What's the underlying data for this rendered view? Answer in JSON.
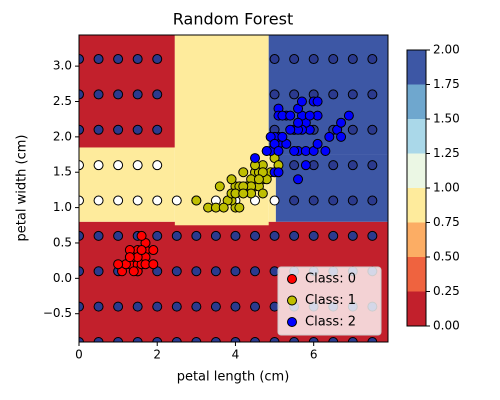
{
  "chart_data": {
    "type": "scatter",
    "title": "Random Forest",
    "x_label": "petal length (cm)",
    "y_label": "petal width (cm)",
    "xlim": [
      0,
      7.9
    ],
    "ylim": [
      -0.9,
      3.44
    ],
    "xticks": [
      0,
      2,
      4,
      6
    ],
    "yticks": [
      {
        "value": -0.5,
        "label": "−0.5"
      },
      {
        "value": 0,
        "label": "0.0"
      },
      {
        "value": 0.5,
        "label": "0.5"
      },
      {
        "value": 1,
        "label": "1.0"
      },
      {
        "value": 1.5,
        "label": "1.5"
      },
      {
        "value": 2,
        "label": "2.0"
      },
      {
        "value": 2.5,
        "label": "2.5"
      },
      {
        "value": 3,
        "label": "3.0"
      }
    ],
    "regions": [
      {
        "x0": 0,
        "x1": 7.9,
        "y0": -0.9,
        "y1": 0.8,
        "value": 0
      },
      {
        "x0": 0,
        "x1": 2.45,
        "y0": 0.8,
        "y1": 1.85,
        "value": 1
      },
      {
        "x0": 0,
        "x1": 2.45,
        "y0": 1.85,
        "y1": 3.44,
        "value": 0
      },
      {
        "x0": 2.45,
        "x1": 4.85,
        "y0": 0.75,
        "y1": 3.44,
        "value": 1
      },
      {
        "x0": 4.85,
        "x1": 7.9,
        "y0": 1.75,
        "y1": 3.44,
        "value": 2
      },
      {
        "x0": 5.03,
        "x1": 7.9,
        "y0": 0.8,
        "y1": 1.75,
        "value": 2
      },
      {
        "x0": 4.85,
        "x1": 5.03,
        "y0": 0.8,
        "y1": 1.75,
        "value": 1
      }
    ],
    "grid_points": [
      {
        "color": "#2b3a8e",
        "x": [
          0,
          0.5,
          1,
          1.5,
          2,
          5,
          5.5,
          6,
          6.5,
          7,
          7.5,
          0,
          0.5,
          1,
          1.5,
          2,
          5,
          5.5,
          6,
          6.5,
          7,
          7.5,
          0,
          0.5,
          1,
          1.5,
          2,
          5,
          5.5,
          6,
          6.5,
          7,
          7.5,
          5.5,
          6,
          6.5,
          7,
          7.5,
          5.5,
          6,
          6.5,
          7,
          7.5,
          0,
          0.5,
          1,
          1.5,
          2,
          2.5,
          3,
          3.5,
          4,
          4.5,
          5,
          5.5,
          6,
          6.5,
          7,
          7.5,
          0,
          0.5,
          1,
          1.5,
          2,
          2.5,
          3,
          3.5,
          4,
          4.5,
          5,
          5.5,
          6,
          6.5,
          7,
          7.5,
          0,
          0.5,
          1,
          1.5,
          2,
          2.5,
          3,
          3.5,
          4,
          4.5,
          5,
          5.5,
          6,
          6.5,
          7,
          7.5,
          0,
          0.5,
          1,
          1.5,
          2,
          2.5,
          3,
          3.5,
          4,
          4.5,
          5,
          5.5,
          6,
          6.5,
          7,
          7.5
        ],
        "y": [
          3.1,
          3.1,
          3.1,
          3.1,
          3.1,
          3.1,
          3.1,
          3.1,
          3.1,
          3.1,
          3.1,
          2.6,
          2.6,
          2.6,
          2.6,
          2.6,
          2.6,
          2.6,
          2.6,
          2.6,
          2.6,
          2.6,
          2.1,
          2.1,
          2.1,
          2.1,
          2.1,
          2.1,
          2.1,
          2.1,
          2.1,
          2.1,
          2.1,
          1.6,
          1.6,
          1.6,
          1.6,
          1.6,
          1.1,
          1.1,
          1.1,
          1.1,
          1.1,
          0.6,
          0.6,
          0.6,
          0.6,
          0.6,
          0.6,
          0.6,
          0.6,
          0.6,
          0.6,
          0.6,
          0.6,
          0.6,
          0.6,
          0.6,
          0.6,
          0.1,
          0.1,
          0.1,
          0.1,
          0.1,
          0.1,
          0.1,
          0.1,
          0.1,
          0.1,
          0.1,
          0.1,
          0.1,
          0.1,
          0.1,
          0.1,
          -0.4,
          -0.4,
          -0.4,
          -0.4,
          -0.4,
          -0.4,
          -0.4,
          -0.4,
          -0.4,
          -0.4,
          -0.4,
          -0.4,
          -0.4,
          -0.4,
          -0.4,
          -0.4,
          -0.9,
          -0.9,
          -0.9,
          -0.9,
          -0.9,
          -0.9,
          -0.9,
          -0.9,
          -0.9,
          -0.9,
          -0.9,
          -0.9,
          -0.9,
          -0.9,
          -0.9,
          -0.9
        ]
      },
      {
        "color": "#ffffff",
        "x": [
          0,
          0.5,
          1,
          1.5,
          2,
          0,
          0.5,
          1,
          1.5,
          2,
          2.5,
          3,
          3.5,
          4,
          4.5,
          5
        ],
        "y": [
          1.6,
          1.6,
          1.6,
          1.6,
          1.6,
          1.1,
          1.1,
          1.1,
          1.1,
          1.1,
          1.1,
          1.1,
          1.1,
          1.1,
          1.1,
          1.1
        ]
      }
    ],
    "series": [
      {
        "name": "Class: 0",
        "color": "#ff0000",
        "x": [
          1.4,
          1.3,
          1.5,
          1.7,
          1.4,
          1.5,
          1.6,
          1.4,
          1.1,
          1.2,
          1.5,
          1.3,
          1.7,
          1.5,
          1.7,
          1.0,
          1.7,
          1.9,
          1.6,
          1.3,
          1.6,
          1.9
        ],
        "y": [
          0.2,
          0.2,
          0.2,
          0.4,
          0.3,
          0.1,
          0.2,
          0.1,
          0.1,
          0.2,
          0.4,
          0.4,
          0.3,
          0.3,
          0.2,
          0.2,
          0.5,
          0.2,
          0.4,
          0.3,
          0.6,
          0.4
        ]
      },
      {
        "name": "Class: 1",
        "color": "#bfbf00",
        "x": [
          4.7,
          4.5,
          4.9,
          4.0,
          4.6,
          4.5,
          4.7,
          3.3,
          4.6,
          3.9,
          3.5,
          4.2,
          4.0,
          3.6,
          4.4,
          4.1,
          3.9,
          4.8,
          4.7,
          4.3,
          4.8,
          5.0,
          3.8,
          3.7,
          3.9,
          5.1,
          4.5,
          4.7,
          4.4,
          4.1,
          4.4,
          4.6,
          4.0,
          4.2,
          4.2,
          3.0
        ],
        "y": [
          1.4,
          1.5,
          1.5,
          1.3,
          1.5,
          1.3,
          1.6,
          1.0,
          1.3,
          1.4,
          1.0,
          1.5,
          1.0,
          1.3,
          1.4,
          1.0,
          1.1,
          1.8,
          1.2,
          1.3,
          1.4,
          1.7,
          1.1,
          1.0,
          1.2,
          1.6,
          1.6,
          1.5,
          1.3,
          1.3,
          1.2,
          1.4,
          1.2,
          1.3,
          1.2,
          1.1
        ]
      },
      {
        "name": "Class: 2",
        "color": "#0000ff",
        "x": [
          6.0,
          5.1,
          5.9,
          5.6,
          5.8,
          6.6,
          4.5,
          6.3,
          5.8,
          6.1,
          5.1,
          5.3,
          5.5,
          5.0,
          5.1,
          5.3,
          5.5,
          6.7,
          6.9,
          5.0,
          5.7,
          4.9,
          6.7,
          4.9,
          5.7,
          6.0,
          4.8,
          5.6,
          5.8,
          6.1,
          6.4,
          5.6,
          5.1,
          5.6,
          6.1,
          5.6,
          5.4,
          5.1,
          5.9,
          5.7,
          5.2,
          5.0,
          5.2,
          5.4,
          5.1
        ],
        "y": [
          2.5,
          1.9,
          2.1,
          1.8,
          2.2,
          2.1,
          1.7,
          1.8,
          1.8,
          2.5,
          2.0,
          1.9,
          2.1,
          2.0,
          2.4,
          2.3,
          1.8,
          2.2,
          2.3,
          1.5,
          2.3,
          2.0,
          2.0,
          1.8,
          2.1,
          1.8,
          1.8,
          2.1,
          1.6,
          1.9,
          2.0,
          2.2,
          1.5,
          1.4,
          2.3,
          2.4,
          2.1,
          2.3,
          2.3,
          2.5,
          2.3,
          1.9,
          2.0,
          2.3,
          1.8
        ]
      }
    ],
    "legend": "lower right",
    "colorbar": {
      "clim": [
        0,
        2
      ],
      "ticks": [
        {
          "value": 0,
          "label": "0.00"
        },
        {
          "value": 0.25,
          "label": "0.25"
        },
        {
          "value": 0.5,
          "label": "0.50"
        },
        {
          "value": 0.75,
          "label": "0.75"
        },
        {
          "value": 1,
          "label": "1.00"
        },
        {
          "value": 1.25,
          "label": "1.25"
        },
        {
          "value": 1.5,
          "label": "1.50"
        },
        {
          "value": 1.75,
          "label": "1.75"
        },
        {
          "value": 2,
          "label": "2.00"
        }
      ],
      "colors": [
        "#c2202c",
        "#ef633f",
        "#fcad64",
        "#feeb9c",
        "#ebf7e4",
        "#aad8e9",
        "#6fa7ce",
        "#3d57a5"
      ]
    }
  }
}
